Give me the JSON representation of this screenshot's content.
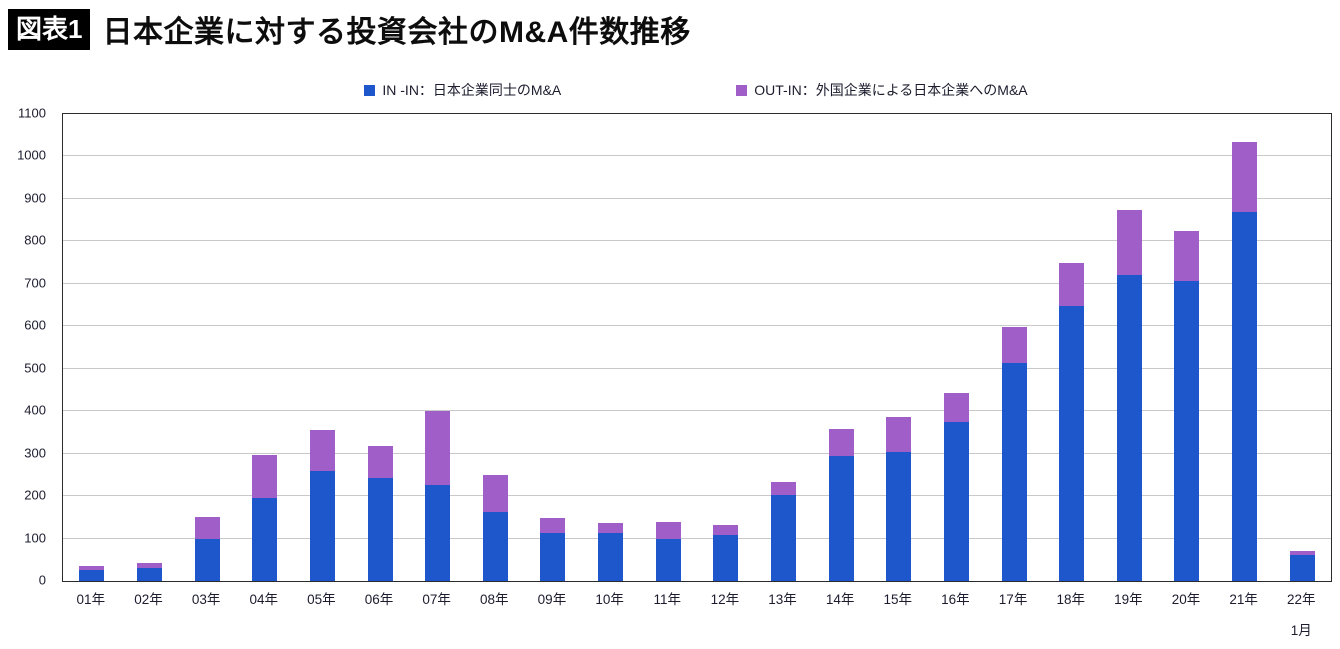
{
  "header": {
    "badge": "図表1",
    "title": "日本企業に対する投資会社のM&A件数推移"
  },
  "legend": [
    {
      "label": "IN -IN：日本企業同士のM&A",
      "color": "#1e56cb"
    },
    {
      "label": "OUT-IN：外国企業による日本企業へのM&A",
      "color": "#a05fc8"
    }
  ],
  "chart_data": {
    "type": "bar",
    "stacked": true,
    "title": "日本企業に対する投資会社のM&A件数推移",
    "xlabel": "",
    "ylabel": "",
    "ylim": [
      0,
      1100
    ],
    "ytick_interval": 100,
    "grid": true,
    "legend_position": "top",
    "categories": [
      "01年",
      "02年",
      "03年",
      "04年",
      "05年",
      "06年",
      "07年",
      "08年",
      "09年",
      "10年",
      "11年",
      "12年",
      "13年",
      "14年",
      "15年",
      "16年",
      "17年",
      "18年",
      "19年",
      "20年",
      "21年",
      "22年"
    ],
    "x_sub_label": {
      "index": 21,
      "label": "1月"
    },
    "series": [
      {
        "name": "IN -IN：日本企業同士のM&A",
        "color": "#1e56cb",
        "values": [
          25,
          30,
          100,
          195,
          258,
          242,
          227,
          163,
          112,
          112,
          100,
          108,
          203,
          295,
          303,
          375,
          513,
          648,
          720,
          707,
          870,
          62
        ]
      },
      {
        "name": "OUT-IN：外国企業による日本企業へのM&A",
        "color": "#a05fc8",
        "values": [
          10,
          12,
          50,
          102,
          97,
          75,
          173,
          87,
          36,
          25,
          40,
          24,
          30,
          62,
          84,
          68,
          85,
          102,
          153,
          118,
          165,
          8
        ]
      }
    ]
  }
}
